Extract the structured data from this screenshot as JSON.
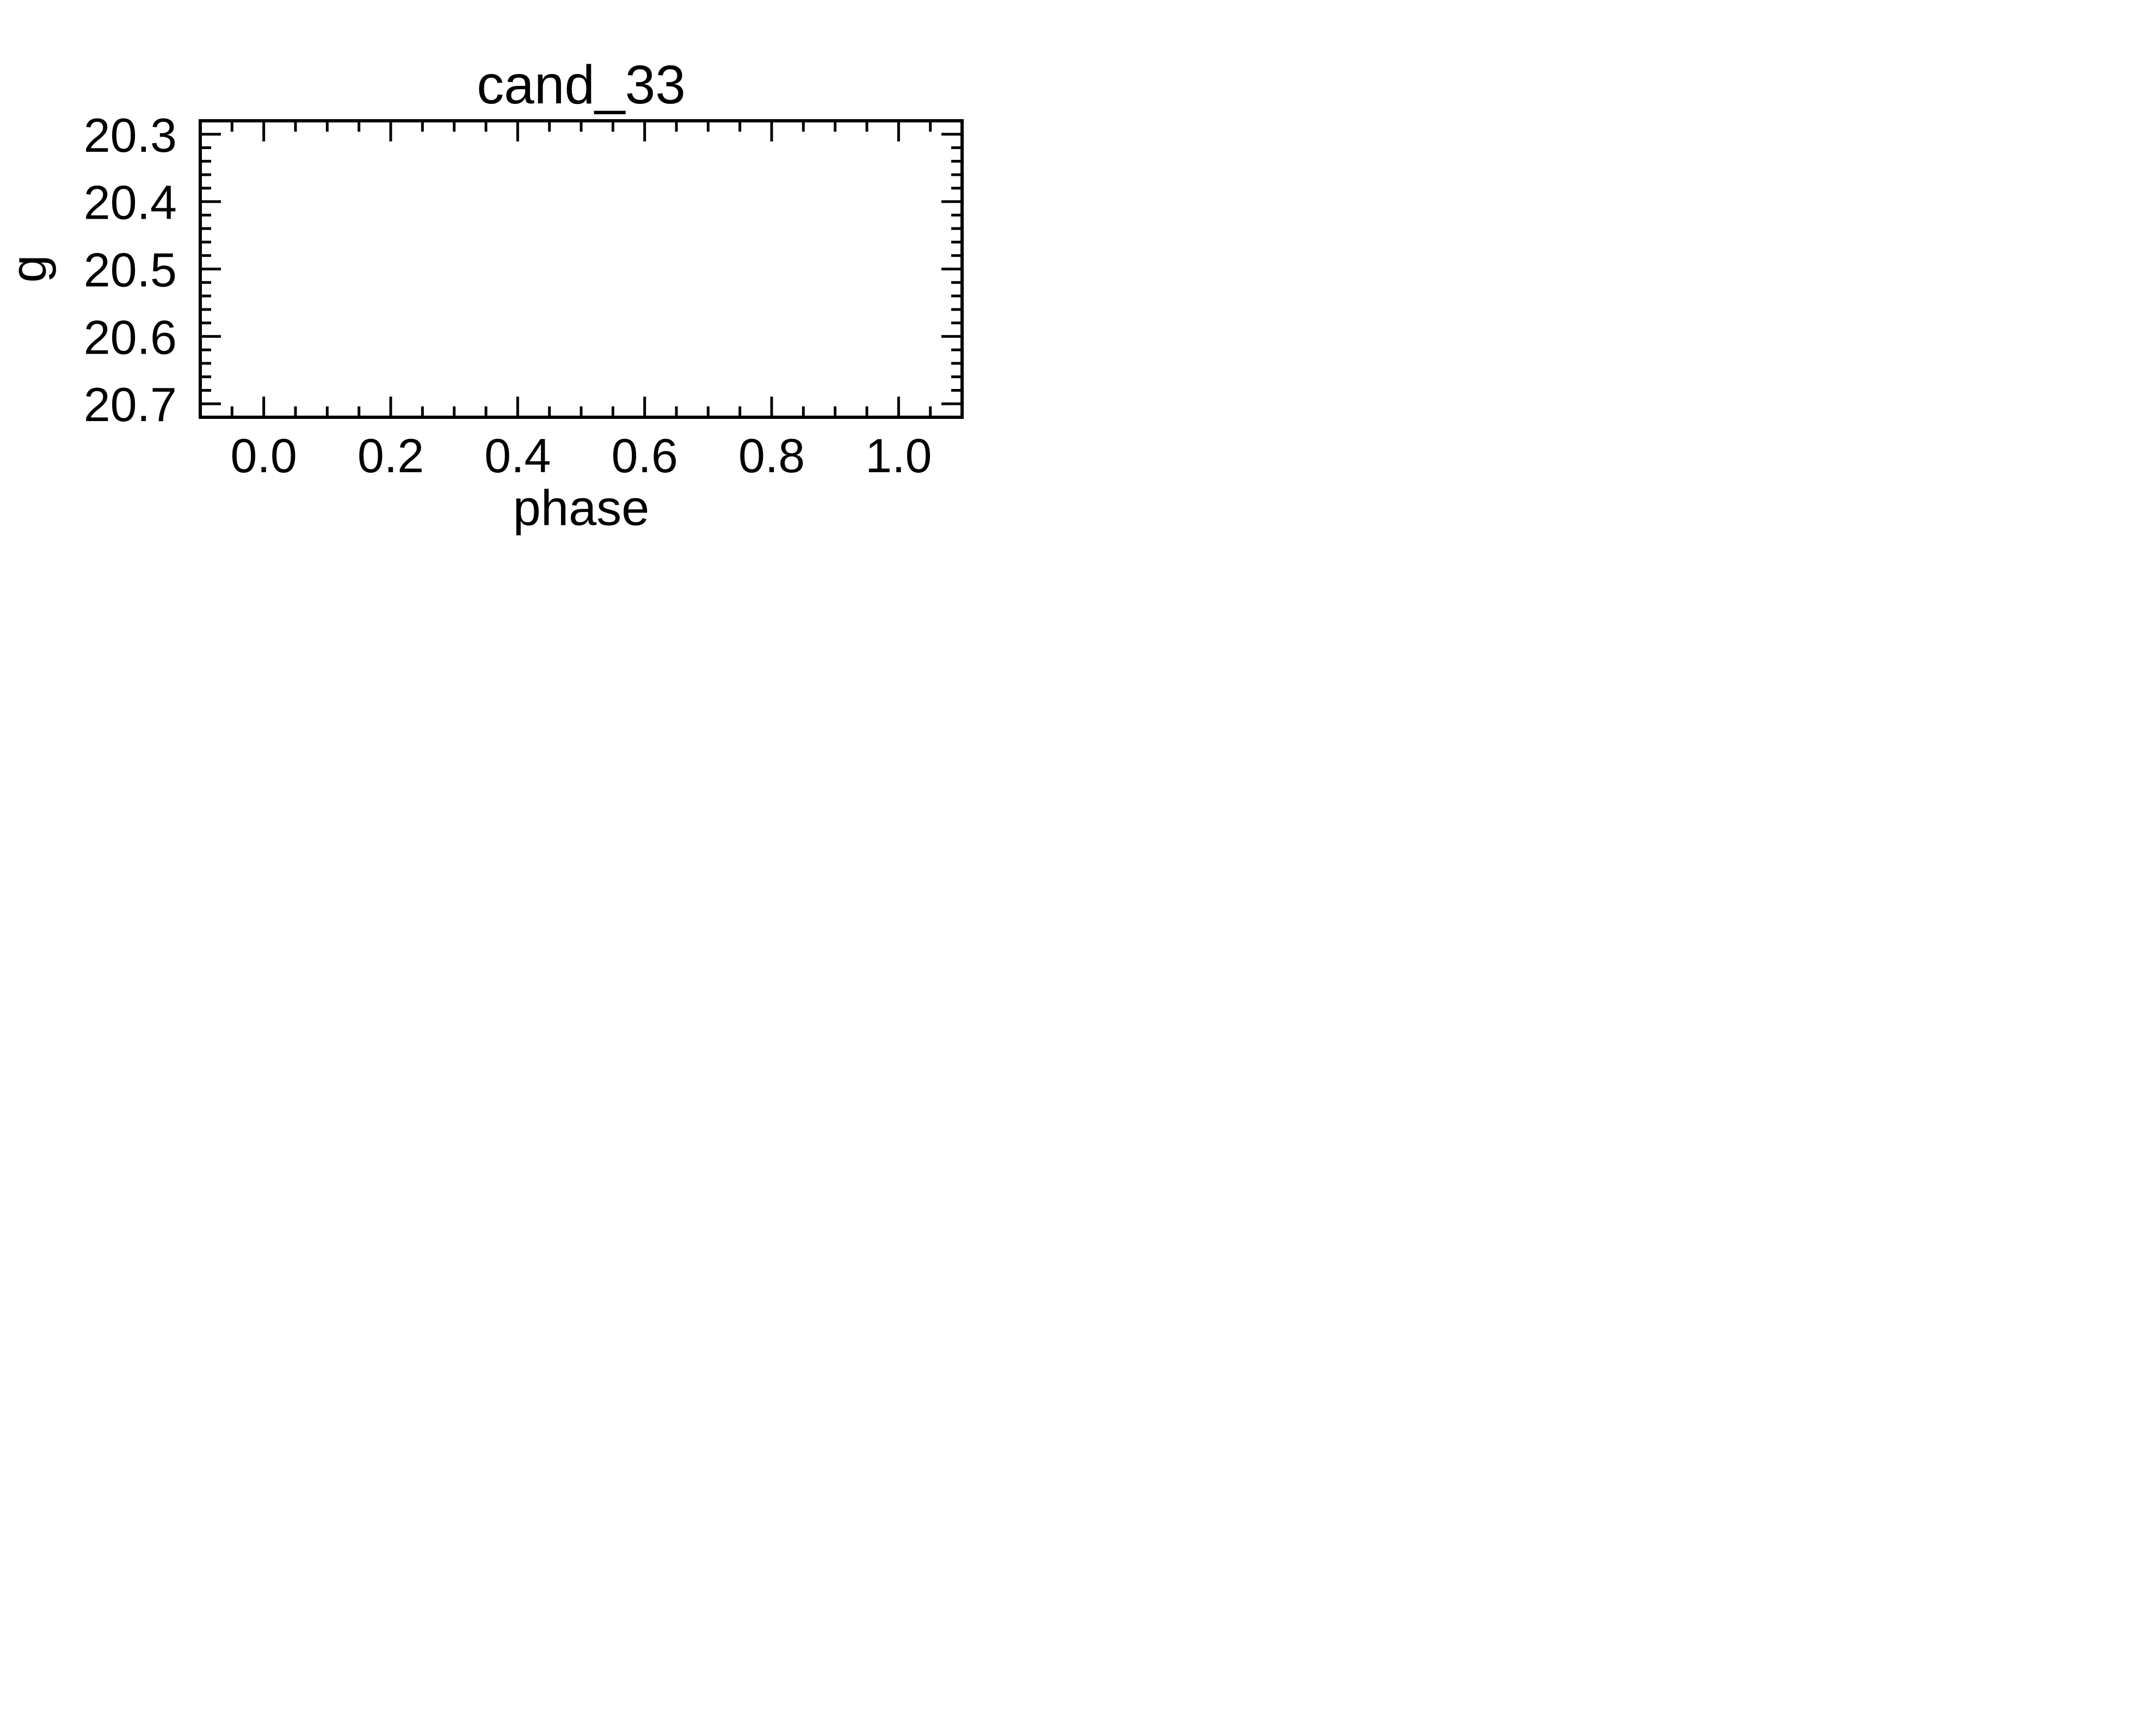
{
  "chart_data": {
    "type": "scatter",
    "title": "cand_33",
    "xlabel": "phase",
    "ylabel": "g",
    "xlim": [
      -0.1,
      1.1
    ],
    "ylim": [
      20.72,
      20.28
    ],
    "y_inverted": true,
    "x_ticks": [
      0.0,
      0.2,
      0.4,
      0.6,
      0.8,
      1.0
    ],
    "x_tick_labels": [
      "0.0",
      "0.2",
      "0.4",
      "0.6",
      "0.8",
      "1.0"
    ],
    "x_minor_tick_step": 0.05,
    "y_ticks": [
      20.3,
      20.4,
      20.5,
      20.6,
      20.7
    ],
    "y_tick_labels": [
      "20.3",
      "20.4",
      "20.5",
      "20.6",
      "20.7"
    ],
    "y_minor_tick_step": 0.02,
    "grid": false,
    "series": [
      {
        "x": [],
        "y": []
      }
    ]
  }
}
